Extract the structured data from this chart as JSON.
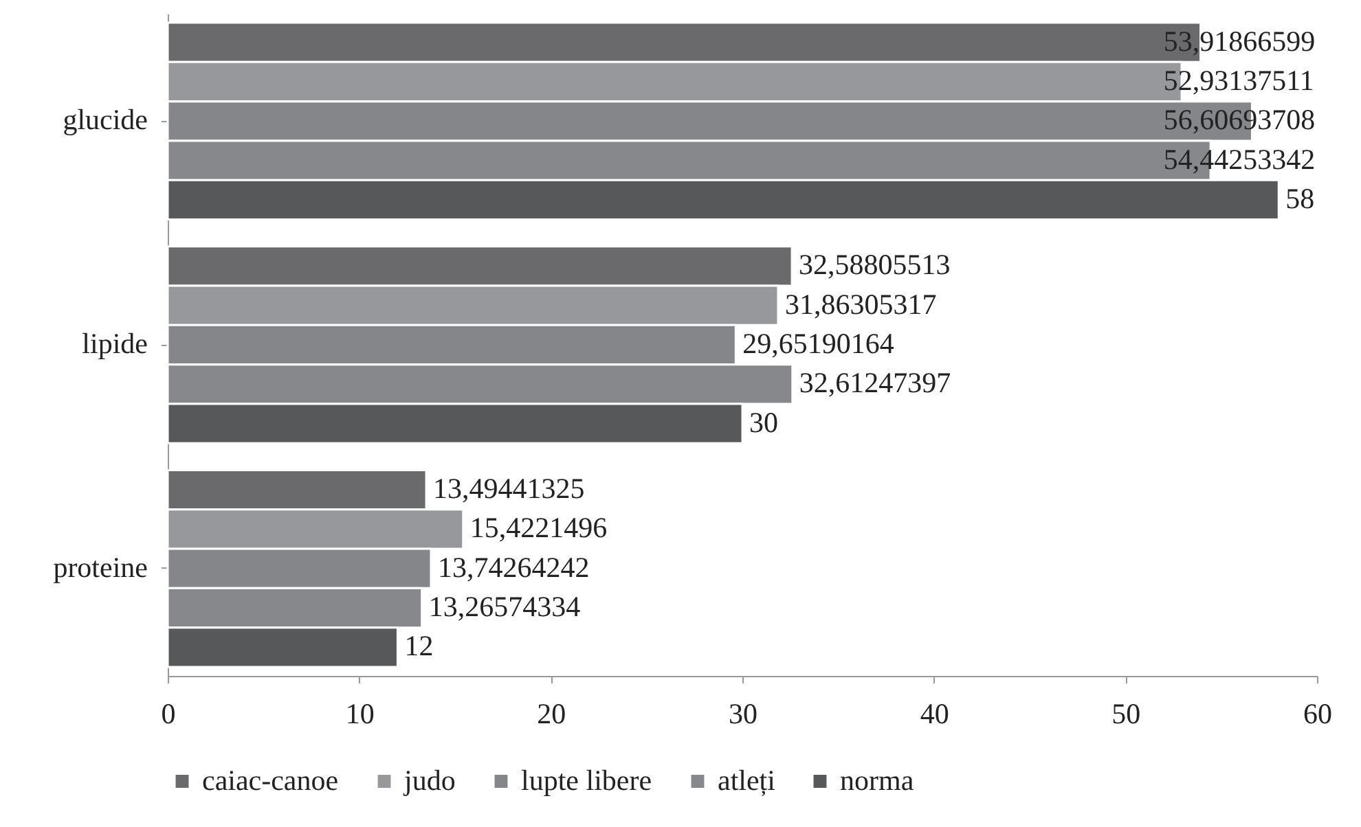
{
  "chart_data": {
    "type": "bar",
    "orientation": "horizontal",
    "categories": [
      "glucide",
      "lipide",
      "proteine"
    ],
    "series": [
      {
        "name": "caiac-canoe",
        "color": "#6a6a6c",
        "values": [
          53.91866599,
          32.58805513,
          13.49441325
        ],
        "value_labels": [
          "53,91866599",
          "32,58805513",
          "13,49441325"
        ]
      },
      {
        "name": "judo",
        "color": "#97989b",
        "values": [
          52.93137511,
          31.86305317,
          15.4221496
        ],
        "value_labels": [
          "52,93137511",
          "31,86305317",
          "15,4221496"
        ]
      },
      {
        "name": "lupte libere",
        "color": "#85868a",
        "values": [
          56.60693708,
          29.65190164,
          13.74264242
        ],
        "value_labels": [
          "56,60693708",
          "29,65190164",
          "13,74264242"
        ]
      },
      {
        "name": "atleți",
        "color": "#87888b",
        "values": [
          54.44253342,
          32.61247397,
          13.26574334
        ],
        "value_labels": [
          "54,44253342",
          "32,61247397",
          "13,26574334"
        ]
      },
      {
        "name": "norma",
        "color": "#57585a",
        "values": [
          58,
          30,
          12
        ],
        "value_labels": [
          "58",
          "30",
          "12"
        ]
      }
    ],
    "xlim": [
      0,
      60
    ],
    "xticks": [
      0,
      10,
      20,
      30,
      40,
      50,
      60
    ],
    "grid": false,
    "legend": "bottom"
  }
}
